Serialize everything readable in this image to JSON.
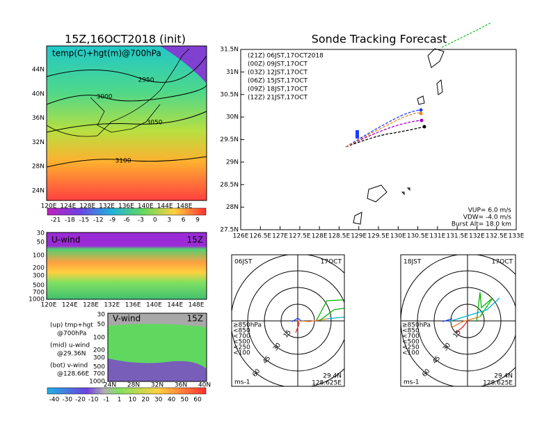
{
  "top_left": {
    "title": "15Z,16OCT2018 (init)",
    "subtitle": "temp(C)+hgt(m)@700hPa",
    "lat_labels": [
      "44N",
      "40N",
      "36N",
      "32N",
      "28N",
      "24N"
    ],
    "lon_labels": [
      "120E",
      "124E",
      "128E",
      "132E",
      "136E",
      "140E",
      "144E",
      "148E"
    ],
    "contour_labels": [
      "2950",
      "3000",
      "3050",
      "3100"
    ],
    "colorbar": [
      "-21",
      "-18",
      "-15",
      "-12",
      "-9",
      "-6",
      "-3",
      "0",
      "3",
      "6",
      "9"
    ]
  },
  "u_wind": {
    "label": "U-wind",
    "time": "15Z",
    "levels": [
      "30",
      "50",
      "100",
      "200",
      "300",
      "500",
      "700",
      "1000"
    ],
    "lon_labels": [
      "120E",
      "124E",
      "128E",
      "132E",
      "136E",
      "140E",
      "144E",
      "148E"
    ]
  },
  "notes": [
    "(up) tmp+hgt",
    "@700hPa",
    "(mid) u-wind",
    "@29.36N",
    "(bot) v-wind",
    "@128.66E"
  ],
  "v_wind": {
    "label": "V-wind",
    "time": "15Z",
    "levels": [
      "30",
      "50",
      "100",
      "200",
      "300",
      "500",
      "700",
      "1000"
    ],
    "lat_labels": [
      "24N",
      "28N",
      "32N",
      "36N",
      "40N"
    ],
    "colorbar": [
      "-40",
      "-30",
      "-20",
      "-10",
      "-1",
      "1",
      "10",
      "20",
      "30",
      "40",
      "50",
      "60"
    ]
  },
  "track": {
    "title": "Sonde Tracking Forecast",
    "legend": [
      {
        "text": "(21Z)  06JST,17OCT2018",
        "color": "#000000"
      },
      {
        "text": "(00Z)  09JST,17OCT",
        "color": "#a000c0"
      },
      {
        "text": "(03Z)  12JST,17OCT",
        "color": "#1e3cff"
      },
      {
        "text": "(06Z)  15JST,17OCT",
        "color": "#00b400"
      },
      {
        "text": "(09Z)  18JST,17OCT",
        "color": "#f0c800"
      },
      {
        "text": "(12Z)  21JST,17OCT",
        "color": "#f08228"
      }
    ],
    "lat_labels": [
      "31.5N",
      "31N",
      "30.5N",
      "30N",
      "29.5N",
      "29N",
      "28.5N",
      "28N",
      "27.5N"
    ],
    "lon_labels": [
      "126E",
      "126.5E",
      "127E",
      "127.5E",
      "128E",
      "128.5E",
      "129E",
      "129.5E",
      "130E",
      "130.5E",
      "131E",
      "131.5E",
      "132E",
      "132.5E",
      "133E"
    ],
    "params": [
      "VUP= 6.0 m/s",
      "VDW= -4.0 m/s",
      "Burst Alt= 18.0 km"
    ]
  },
  "hodographs": [
    {
      "time": "06JST",
      "date": "17OCT",
      "rings": [
        "15",
        "30",
        "45",
        "60"
      ],
      "levels": [
        "≥850hPa",
        "<850",
        "<700",
        "<500",
        "<250",
        "<100"
      ],
      "level_colors": [
        "#e62828",
        "#f08228",
        "#e6c800",
        "#00b400",
        "#00b4d2",
        "#1e3cff"
      ],
      "lat": "29.4N",
      "lon": "128.625E",
      "unit": "ms-1"
    },
    {
      "time": "18JST",
      "date": "17OCT",
      "rings": [
        "15",
        "30",
        "45",
        "60"
      ],
      "levels": [
        "≥850hPa",
        "<850",
        "<700",
        "<500",
        "<250",
        "<100"
      ],
      "level_colors": [
        "#e62828",
        "#f08228",
        "#e6c800",
        "#00b400",
        "#00b4d2",
        "#1e3cff"
      ],
      "lat": "29.4N",
      "lon": "128.625E",
      "unit": "ms-1"
    }
  ]
}
